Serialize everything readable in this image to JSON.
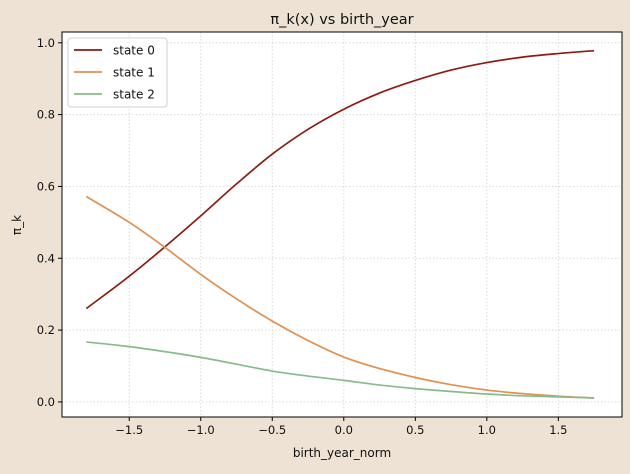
{
  "chart_data": {
    "type": "line",
    "title": "π_k(x) vs birth_year",
    "xlabel": "birth_year_norm",
    "ylabel": "π_k",
    "xlim": [
      -1.97,
      1.945
    ],
    "ylim": [
      -0.042,
      1.03
    ],
    "grid": true,
    "legend_position": "top-left",
    "xticks": [
      -1.5,
      -1.0,
      -0.5,
      0.0,
      0.5,
      1.0,
      1.5
    ],
    "xtick_labels": [
      "−1.5",
      "−1.0",
      "−0.5",
      "0.0",
      "0.5",
      "1.0",
      "1.5"
    ],
    "yticks": [
      0.0,
      0.2,
      0.4,
      0.6,
      0.8,
      1.0
    ],
    "ytick_labels": [
      "0.0",
      "0.2",
      "0.4",
      "0.6",
      "0.8",
      "1.0"
    ],
    "x": [
      -1.8,
      -1.5,
      -1.25,
      -1.0,
      -0.75,
      -0.5,
      -0.25,
      0.0,
      0.25,
      0.5,
      0.75,
      1.0,
      1.25,
      1.5,
      1.75
    ],
    "series": [
      {
        "name": "state 0",
        "color": "#8c1c13",
        "values": [
          0.26,
          0.35,
          0.432,
          0.518,
          0.607,
          0.69,
          0.759,
          0.815,
          0.86,
          0.895,
          0.924,
          0.945,
          0.96,
          0.97,
          0.978
        ]
      },
      {
        "name": "state 1",
        "color": "#e0904f",
        "values": [
          0.572,
          0.5,
          0.43,
          0.355,
          0.287,
          0.225,
          0.171,
          0.125,
          0.093,
          0.068,
          0.048,
          0.033,
          0.023,
          0.016,
          0.011
        ]
      },
      {
        "name": "state 2",
        "color": "#87bb8b",
        "values": [
          0.167,
          0.154,
          0.14,
          0.124,
          0.105,
          0.086,
          0.072,
          0.06,
          0.047,
          0.037,
          0.029,
          0.022,
          0.017,
          0.014,
          0.011
        ]
      }
    ]
  }
}
